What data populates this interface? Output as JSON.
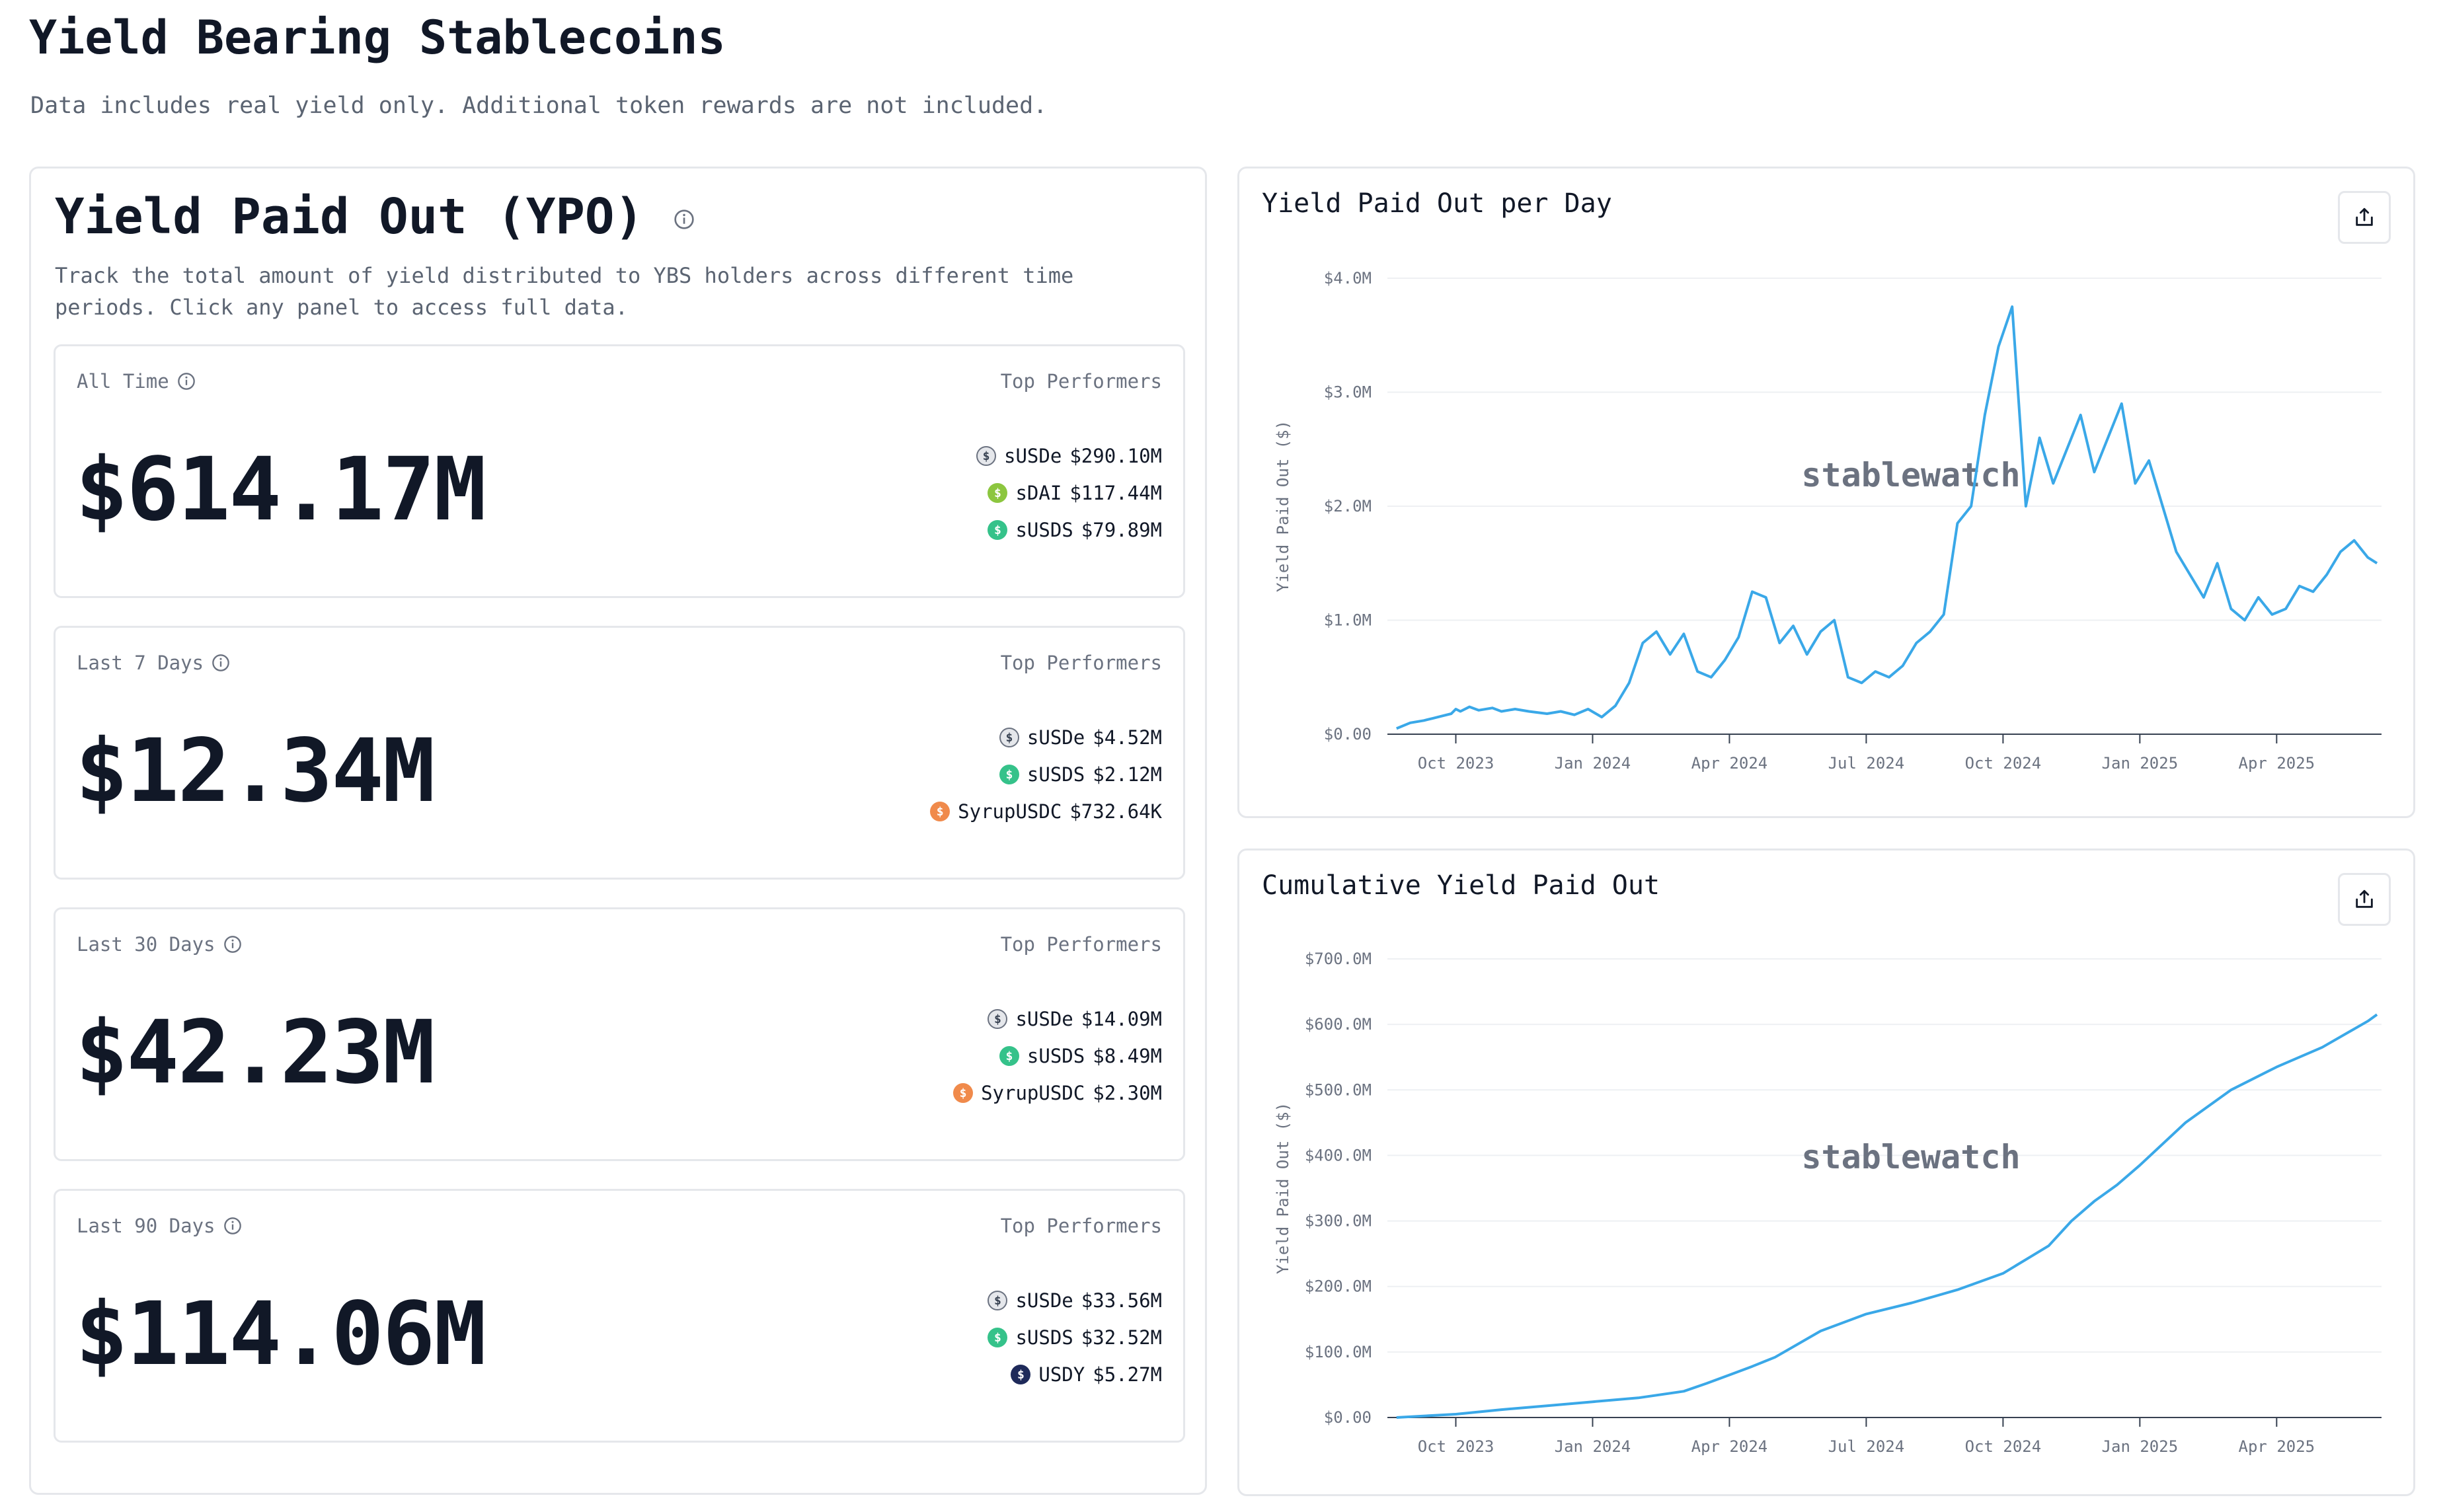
{
  "page": {
    "title": "Yield Bearing Stablecoins",
    "subtitle": "Data includes real yield only. Additional token rewards are not included."
  },
  "ypo": {
    "title": "Yield Paid Out (YPO)",
    "description": "Track the total amount of yield distributed to YBS holders across different time periods. Click any panel to access full data.",
    "top_label": "Top Performers",
    "cards": [
      {
        "label": "All Time",
        "value": "$614.17M",
        "performers": [
          {
            "name": "sUSDe",
            "amount": "$290.10M",
            "icon": "susde-icon",
            "color": "#e5e7eb"
          },
          {
            "name": "sDAI",
            "amount": "$117.44M",
            "icon": "sdai-icon",
            "color": "#8cc63f"
          },
          {
            "name": "sUSDS",
            "amount": "$79.89M",
            "icon": "susds-icon",
            "color": "#35c28a"
          }
        ]
      },
      {
        "label": "Last 7 Days",
        "value": "$12.34M",
        "performers": [
          {
            "name": "sUSDe",
            "amount": "$4.52M",
            "icon": "susde-icon",
            "color": "#e5e7eb"
          },
          {
            "name": "sUSDS",
            "amount": "$2.12M",
            "icon": "susds-icon",
            "color": "#35c28a"
          },
          {
            "name": "SyrupUSDC",
            "amount": "$732.64K",
            "icon": "syrupusdc-icon",
            "color": "#f08a4b"
          }
        ]
      },
      {
        "label": "Last 30 Days",
        "value": "$42.23M",
        "performers": [
          {
            "name": "sUSDe",
            "amount": "$14.09M",
            "icon": "susde-icon",
            "color": "#e5e7eb"
          },
          {
            "name": "sUSDS",
            "amount": "$8.49M",
            "icon": "susds-icon",
            "color": "#35c28a"
          },
          {
            "name": "SyrupUSDC",
            "amount": "$2.30M",
            "icon": "syrupusdc-icon",
            "color": "#f08a4b"
          }
        ]
      },
      {
        "label": "Last 90 Days",
        "value": "$114.06M",
        "performers": [
          {
            "name": "sUSDe",
            "amount": "$33.56M",
            "icon": "susde-icon",
            "color": "#e5e7eb"
          },
          {
            "name": "sUSDS",
            "amount": "$32.52M",
            "icon": "susds-icon",
            "color": "#35c28a"
          },
          {
            "name": "USDY",
            "amount": "$5.27M",
            "icon": "usdy-icon",
            "color": "#1e2a5a"
          }
        ]
      }
    ]
  },
  "charts": {
    "accent": "#3aa8e8",
    "watermark": "stablewatch",
    "share_icon": "share-icon",
    "daily": {
      "title": "Yield Paid Out per Day",
      "chart_data": {
        "type": "line",
        "ylabel": "Yield Paid Out ($)",
        "ylim": [
          0,
          4.0
        ],
        "yticks": [
          "$0.00",
          "$1.0M",
          "$2.0M",
          "$3.0M",
          "$4.0M"
        ],
        "xticks": [
          "Oct 2023",
          "Jan 2024",
          "Apr 2024",
          "Jul 2024",
          "Oct 2024",
          "Jan 2025",
          "Apr 2025"
        ],
        "x": [
          -1.3,
          -1.0,
          -0.7,
          -0.5,
          -0.3,
          -0.1,
          0,
          0.1,
          0.3,
          0.5,
          0.8,
          1.0,
          1.3,
          1.6,
          2.0,
          2.3,
          2.6,
          2.9,
          3.2,
          3.5,
          3.8,
          4.1,
          4.4,
          4.7,
          5.0,
          5.3,
          5.6,
          5.9,
          6.2,
          6.5,
          6.8,
          7.1,
          7.4,
          7.7,
          8.0,
          8.3,
          8.6,
          8.9,
          9.2,
          9.5,
          9.8,
          10.1,
          10.4,
          10.7,
          11.0,
          11.3,
          11.6,
          11.9,
          12.2,
          12.5,
          12.8,
          13.1,
          13.4,
          13.7,
          14.0,
          14.3,
          14.6,
          14.9,
          15.2,
          15.5,
          15.8,
          16.1,
          16.4,
          16.7,
          17.0,
          17.3,
          17.6,
          17.9,
          18.2,
          18.5,
          18.8,
          19.1,
          19.4,
          19.7,
          20.0,
          20.2
        ],
        "values": [
          0.05,
          0.1,
          0.12,
          0.14,
          0.16,
          0.18,
          0.22,
          0.2,
          0.24,
          0.21,
          0.23,
          0.2,
          0.22,
          0.2,
          0.18,
          0.2,
          0.17,
          0.22,
          0.15,
          0.25,
          0.45,
          0.8,
          0.9,
          0.7,
          0.88,
          0.55,
          0.5,
          0.65,
          0.85,
          1.25,
          1.2,
          0.8,
          0.95,
          0.7,
          0.9,
          1.0,
          0.5,
          0.45,
          0.55,
          0.5,
          0.6,
          0.8,
          0.9,
          1.05,
          1.85,
          2.0,
          2.8,
          3.4,
          3.75,
          2.0,
          2.6,
          2.2,
          2.5,
          2.8,
          2.3,
          2.6,
          2.9,
          2.2,
          2.4,
          2.0,
          1.6,
          1.4,
          1.2,
          1.5,
          1.1,
          1.0,
          1.2,
          1.05,
          1.1,
          1.3,
          1.25,
          1.4,
          1.6,
          1.7,
          1.55,
          1.5
        ]
      }
    },
    "cumulative": {
      "title": "Cumulative Yield Paid Out",
      "chart_data": {
        "type": "line",
        "ylabel": "Yield Paid Out ($)",
        "ylim": [
          0,
          700
        ],
        "yticks": [
          "$0.00",
          "$100.0M",
          "$200.0M",
          "$300.0M",
          "$400.0M",
          "$500.0M",
          "$600.0M",
          "$700.0M"
        ],
        "xticks": [
          "Oct 2023",
          "Jan 2024",
          "Apr 2024",
          "Jul 2024",
          "Oct 2024",
          "Jan 2025",
          "Apr 2025"
        ],
        "x": [
          -1.3,
          0,
          1,
          2,
          3,
          4,
          5,
          5.5,
          6,
          6.5,
          7,
          7.5,
          8,
          9,
          10,
          11,
          12,
          13,
          13.5,
          14,
          14.5,
          15,
          16,
          17,
          18,
          19,
          20,
          20.2
        ],
        "values": [
          0,
          5,
          12,
          18,
          24,
          30,
          40,
          52,
          65,
          78,
          92,
          112,
          132,
          158,
          175,
          195,
          220,
          262,
          300,
          330,
          355,
          385,
          450,
          500,
          535,
          565,
          605,
          615
        ]
      }
    }
  }
}
